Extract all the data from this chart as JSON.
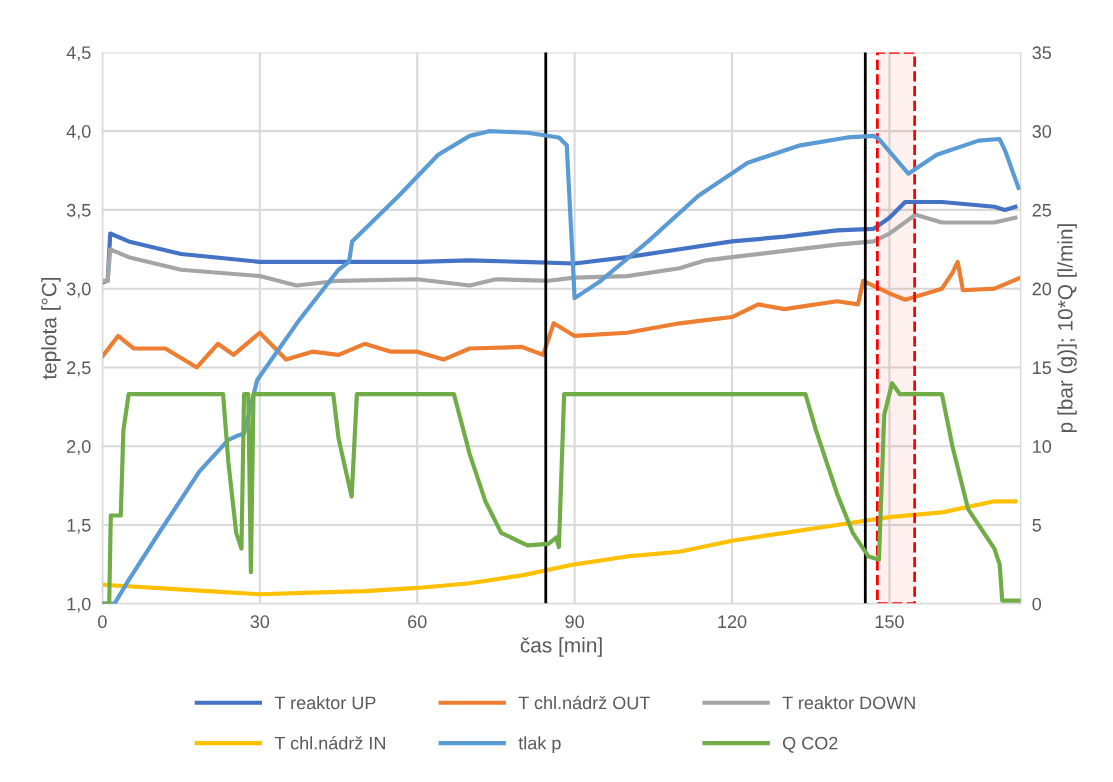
{
  "chart_data": {
    "type": "line",
    "xlabel": "čas [min]",
    "ylabel": "teplota [°C]",
    "y2label": "p [bar (g)]; 10*Q [l/min]",
    "xlim": [
      0,
      175
    ],
    "xticks": [
      0,
      30,
      60,
      90,
      120,
      150
    ],
    "ylim": [
      1.0,
      4.5
    ],
    "yticks": [
      {
        "value": 1.0,
        "label": "1,0"
      },
      {
        "value": 1.5,
        "label": "1,5"
      },
      {
        "value": 2.0,
        "label": "2,0"
      },
      {
        "value": 2.5,
        "label": "2,5"
      },
      {
        "value": 3.0,
        "label": "3,0"
      },
      {
        "value": 3.5,
        "label": "3,5"
      },
      {
        "value": 4.0,
        "label": "4,0"
      },
      {
        "value": 4.5,
        "label": "4,5"
      }
    ],
    "y2lim": [
      0,
      35
    ],
    "y2ticks": [
      0,
      5,
      10,
      15,
      20,
      25,
      30,
      35
    ],
    "grid": true,
    "legend": "bottom",
    "marker": "none",
    "line_style": "solid",
    "ref_lines": [
      {
        "axis": "x",
        "value": 84.5,
        "label": null,
        "color": "#000000"
      },
      {
        "axis": "x",
        "value": 145.4,
        "label": null,
        "color": "#000000"
      }
    ],
    "bands": [
      {
        "axis": "x",
        "from": 147.7,
        "to": 154.8,
        "label": null,
        "color": "#ff0000"
      }
    ],
    "series": [
      {
        "name": "T reaktor UP",
        "color": "#4472c4",
        "x": [
          0,
          1,
          1.5,
          5,
          15,
          30,
          45,
          60,
          70,
          80,
          90,
          100,
          110,
          120,
          130,
          140,
          147,
          150,
          153,
          160,
          170,
          172,
          174
        ],
        "values": [
          3.04,
          3.05,
          3.35,
          3.3,
          3.22,
          3.17,
          3.17,
          3.17,
          3.18,
          3.17,
          3.16,
          3.2,
          3.25,
          3.3,
          3.33,
          3.37,
          3.38,
          3.45,
          3.55,
          3.55,
          3.52,
          3.5,
          3.52
        ]
      },
      {
        "name": "T chl.nádrž OUT",
        "color": "#ed7d31",
        "x": [
          0,
          3,
          6,
          12,
          18,
          22,
          25,
          30,
          35,
          40,
          45,
          50,
          55,
          60,
          65,
          70,
          80,
          84,
          86,
          90,
          100,
          110,
          115,
          120,
          125,
          130,
          140,
          144,
          145,
          150,
          153,
          157,
          160,
          162,
          163,
          164,
          170,
          175
        ],
        "values": [
          2.57,
          2.7,
          2.62,
          2.62,
          2.5,
          2.65,
          2.58,
          2.72,
          2.55,
          2.6,
          2.58,
          2.65,
          2.6,
          2.6,
          2.55,
          2.62,
          2.63,
          2.58,
          2.78,
          2.7,
          2.72,
          2.78,
          2.8,
          2.82,
          2.9,
          2.87,
          2.92,
          2.9,
          3.05,
          2.97,
          2.93,
          2.97,
          3.0,
          3.1,
          3.17,
          2.99,
          3.0,
          3.07
        ]
      },
      {
        "name": "T reaktor DOWN",
        "color": "#a5a5a5",
        "x": [
          0,
          1,
          1.5,
          5,
          15,
          30,
          37,
          45,
          60,
          70,
          75,
          85,
          90,
          100,
          110,
          115,
          120,
          130,
          140,
          147,
          150,
          155,
          160,
          170,
          174
        ],
        "values": [
          3.05,
          3.05,
          3.25,
          3.2,
          3.12,
          3.08,
          3.02,
          3.05,
          3.06,
          3.02,
          3.06,
          3.05,
          3.07,
          3.08,
          3.13,
          3.18,
          3.2,
          3.24,
          3.28,
          3.3,
          3.35,
          3.47,
          3.42,
          3.42,
          3.45
        ]
      },
      {
        "name": "T chl.nádrž IN",
        "color": "#ffc000",
        "x": [
          0,
          10,
          20,
          30,
          40,
          50,
          60,
          70,
          80,
          90,
          100,
          110,
          120,
          130,
          140,
          150,
          160,
          170,
          174
        ],
        "values": [
          1.12,
          1.1,
          1.08,
          1.06,
          1.07,
          1.08,
          1.1,
          1.13,
          1.18,
          1.25,
          1.3,
          1.33,
          1.4,
          1.45,
          1.5,
          1.55,
          1.58,
          1.65,
          1.65
        ]
      },
      {
        "name": "tlak p",
        "color": "#5b9bd5",
        "axis": "y2",
        "x": [
          0,
          2.3,
          5,
          11,
          18.5,
          24,
          26,
          27,
          29.5,
          37.5,
          45,
          47,
          47.6,
          56.5,
          64,
          70,
          73.7,
          81,
          87,
          88.5,
          90,
          94.6,
          104,
          113.6,
          123,
          133,
          142,
          147,
          148,
          153.6,
          159,
          167,
          171,
          172,
          174.6
        ],
        "values": [
          0,
          0,
          1.5,
          4.6,
          8.4,
          10.4,
          10.7,
          10.8,
          14.2,
          18,
          21.2,
          21.7,
          23,
          25.9,
          28.5,
          29.7,
          30,
          29.9,
          29.6,
          29.1,
          19.4,
          20.4,
          23,
          25.9,
          28,
          29.1,
          29.6,
          29.7,
          29.5,
          27.3,
          28.5,
          29.4,
          29.5,
          28.8,
          26.4
        ]
      },
      {
        "name": "Q CO2",
        "color": "#70ad47",
        "axis": "y2",
        "x": [
          0,
          1.3,
          1.6,
          3.5,
          4,
          5,
          23,
          24,
          25.5,
          26.5,
          27,
          27.8,
          28.3,
          28.8,
          29.2,
          29.6,
          30,
          44,
          45,
          47.5,
          48.5,
          67,
          70,
          73,
          76,
          81,
          85,
          86.5,
          87,
          88,
          134,
          136,
          140,
          143,
          146,
          148,
          149,
          150.5,
          152,
          160,
          162,
          165,
          168,
          170,
          171,
          171.5,
          175
        ],
        "values": [
          0,
          0,
          5.6,
          5.6,
          11,
          13.3,
          13.3,
          9,
          4.5,
          3.5,
          13.3,
          13.3,
          2,
          13.3,
          13.3,
          13.3,
          13.3,
          13.3,
          10.5,
          6.8,
          13.3,
          13.3,
          9.5,
          6.5,
          4.5,
          3.7,
          3.8,
          4.2,
          3.6,
          13.3,
          13.3,
          11,
          7,
          4.5,
          3.0,
          2.8,
          12,
          14,
          13.3,
          13.3,
          10,
          6,
          4.5,
          3.5,
          2.5,
          0.2,
          0.2
        ]
      }
    ]
  }
}
